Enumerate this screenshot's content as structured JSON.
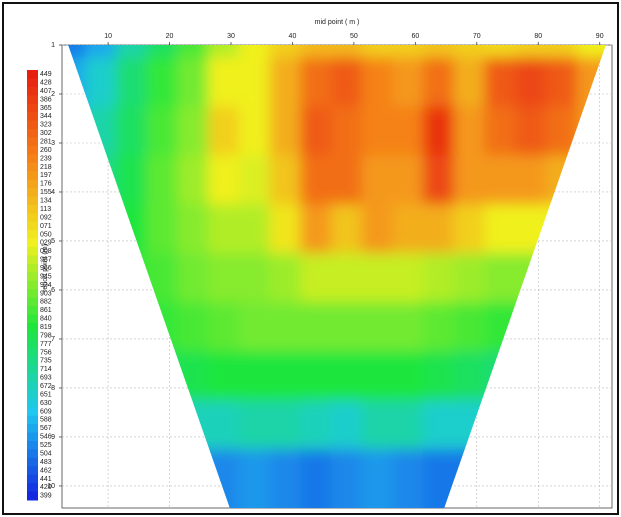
{
  "chart_data": {
    "type": "contour",
    "x_label": "mid point ( m )",
    "y_label": "report point (m)",
    "xlim": [
      2.5,
      92
    ],
    "xticks": [
      10,
      20,
      30,
      40,
      50,
      60,
      70,
      80,
      90
    ],
    "ylim": [
      1,
      10.45
    ],
    "yticks": [
      1,
      2,
      3,
      4,
      5,
      6,
      7,
      8,
      9,
      10
    ],
    "grid": true,
    "x": [
      5,
      10,
      15,
      20,
      25,
      30,
      35,
      40,
      45,
      50,
      55,
      60,
      65,
      70,
      75,
      80,
      85,
      90
    ],
    "y": [
      1,
      2,
      3,
      4,
      5,
      6,
      7,
      8,
      9,
      10
    ],
    "z": [
      [
        5,
        8,
        14,
        18,
        22,
        27,
        30,
        33,
        35,
        35,
        33,
        33,
        34,
        33,
        32,
        33,
        33,
        30
      ],
      [
        8,
        12,
        17,
        21,
        24,
        30,
        30,
        36,
        42,
        44,
        40,
        38,
        42,
        36,
        44,
        46,
        44,
        38
      ],
      [
        10,
        14,
        18,
        22,
        25,
        33,
        30,
        36,
        44,
        42,
        40,
        40,
        48,
        38,
        42,
        44,
        42,
        38
      ],
      [
        12,
        16,
        19,
        23,
        26,
        30,
        29,
        34,
        42,
        42,
        38,
        38,
        46,
        38,
        38,
        38,
        36,
        34
      ],
      [
        14,
        18,
        20,
        23,
        25,
        27,
        27,
        31,
        38,
        34,
        38,
        36,
        36,
        33,
        30,
        30,
        30,
        30
      ],
      [
        15,
        18,
        21,
        22,
        24,
        25,
        25,
        26,
        28,
        28,
        28,
        28,
        27,
        26,
        25,
        25,
        25,
        25
      ],
      [
        15,
        18,
        20,
        21,
        22,
        23,
        24,
        24,
        24,
        24,
        24,
        24,
        23,
        22,
        21,
        21,
        21,
        21
      ],
      [
        14,
        16,
        17,
        18,
        19,
        20,
        20,
        20,
        20,
        20,
        20,
        20,
        19,
        18,
        17,
        17,
        17,
        17
      ],
      [
        10,
        11,
        12,
        12,
        13,
        13,
        14,
        14,
        13,
        12,
        14,
        14,
        12,
        12,
        12,
        12,
        12,
        12
      ],
      [
        5,
        5,
        6,
        6,
        6,
        6,
        7,
        6,
        5,
        6,
        7,
        6,
        5,
        5,
        5,
        5,
        5,
        5
      ]
    ],
    "coverage": [
      [
        3.5,
        1
      ],
      [
        91,
        1
      ],
      [
        64.7,
        10.45
      ],
      [
        29.8,
        10.45
      ]
    ],
    "zlim": [
      0,
      50
    ],
    "colorscale": [
      "#1428e0",
      "#1ec8f0",
      "#1ee63c",
      "#f0f01e",
      "#f58219",
      "#e61e0f"
    ],
    "colorbar_ticks": [
      {
        "value": 50,
        "label": "449"
      },
      {
        "value": 49,
        "label": "428"
      },
      {
        "value": 48,
        "label": "407"
      },
      {
        "value": 47,
        "label": "386"
      },
      {
        "value": 46,
        "label": "365"
      },
      {
        "value": 45,
        "label": "344"
      },
      {
        "value": 44,
        "label": "323"
      },
      {
        "value": 43,
        "label": "302"
      },
      {
        "value": 42,
        "label": "281"
      },
      {
        "value": 41,
        "label": "260"
      },
      {
        "value": 40,
        "label": "239"
      },
      {
        "value": 39,
        "label": "218"
      },
      {
        "value": 38,
        "label": "197"
      },
      {
        "value": 37,
        "label": "176"
      },
      {
        "value": 36,
        "label": "155"
      },
      {
        "value": 35,
        "label": "134"
      },
      {
        "value": 34,
        "label": "113"
      },
      {
        "value": 33,
        "label": "092"
      },
      {
        "value": 32,
        "label": "071"
      },
      {
        "value": 31,
        "label": "050"
      },
      {
        "value": 30,
        "label": "029"
      },
      {
        "value": 29,
        "label": "008"
      },
      {
        "value": 28,
        "label": "987"
      },
      {
        "value": 27,
        "label": "966"
      },
      {
        "value": 26,
        "label": "945"
      },
      {
        "value": 25,
        "label": "924"
      },
      {
        "value": 24,
        "label": "903"
      },
      {
        "value": 23,
        "label": "882"
      },
      {
        "value": 22,
        "label": "861"
      },
      {
        "value": 21,
        "label": "840"
      },
      {
        "value": 20,
        "label": "819"
      },
      {
        "value": 19,
        "label": "798"
      },
      {
        "value": 18,
        "label": "777"
      },
      {
        "value": 17,
        "label": "756"
      },
      {
        "value": 16,
        "label": "735"
      },
      {
        "value": 15,
        "label": "714"
      },
      {
        "value": 14,
        "label": "693"
      },
      {
        "value": 13,
        "label": "672"
      },
      {
        "value": 12,
        "label": "651"
      },
      {
        "value": 11,
        "label": "630"
      },
      {
        "value": 10,
        "label": "609"
      },
      {
        "value": 9,
        "label": "588"
      },
      {
        "value": 8,
        "label": "567"
      },
      {
        "value": 7,
        "label": "546"
      },
      {
        "value": 6,
        "label": "525"
      },
      {
        "value": 5,
        "label": "504"
      },
      {
        "value": 4,
        "label": "483"
      },
      {
        "value": 3,
        "label": "462"
      },
      {
        "value": 2,
        "label": "441"
      },
      {
        "value": 1,
        "label": "420"
      },
      {
        "value": 0,
        "label": "399"
      }
    ]
  }
}
